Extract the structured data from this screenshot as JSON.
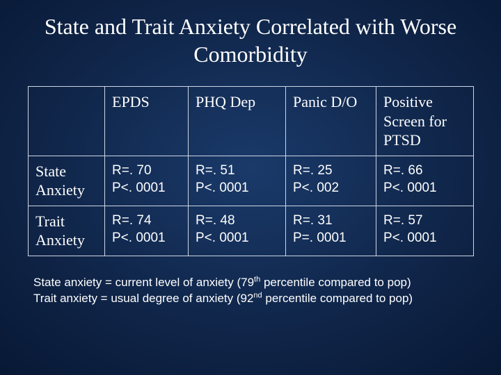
{
  "title": "State and Trait Anxiety Correlated with Worse Comorbidity",
  "table": {
    "columns": [
      "EPDS",
      "PHQ Dep",
      "Panic D/O",
      "Positive Screen for PTSD"
    ],
    "rows": [
      {
        "label": "State Anxiety",
        "cells": [
          {
            "r": "R=. 70",
            "p": "P<. 0001"
          },
          {
            "r": "R=. 51",
            "p": "P<. 0001"
          },
          {
            "r": "R=. 25",
            "p": "P<. 002"
          },
          {
            "r": "R=. 66",
            "p": "P<. 0001"
          }
        ]
      },
      {
        "label": "Trait Anxiety",
        "cells": [
          {
            "r": "R=. 74",
            "p": "P<. 0001"
          },
          {
            "r": "R=. 48",
            "p": "P<. 0001"
          },
          {
            "r": "R=. 31",
            "p": "P=. 0001"
          },
          {
            "r": "R=. 57",
            "p": "P<. 0001"
          }
        ]
      }
    ],
    "header_fontsize": 22,
    "cell_fontsize": 19,
    "border_color": "#cfd6e4",
    "text_color": "#ffffff"
  },
  "footnote": {
    "line1_pre": "State anxiety = current level of anxiety  (79",
    "line1_sup": "th",
    "line1_post": " percentile compared to pop)",
    "line2_pre": "Trait anxiety = usual degree of anxiety  (92",
    "line2_sup": "nd",
    "line2_post": " percentile compared to pop)"
  },
  "background": {
    "gradient_center": "#1a3a6a",
    "gradient_edge": "#020a1a"
  }
}
